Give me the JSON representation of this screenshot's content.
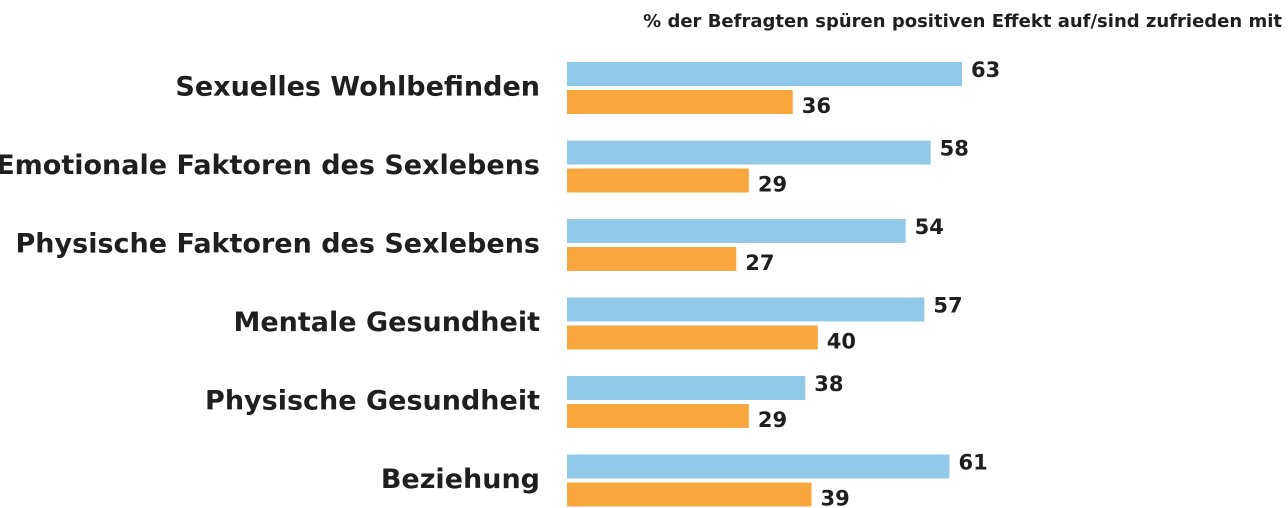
{
  "chart_data": {
    "type": "bar",
    "orientation": "horizontal",
    "subtitle": "% der Befragten spüren positiven Effekt auf/sind zufrieden mit",
    "categories": [
      "Sexuelles Wohlbefinden",
      "Emotionale Faktoren des Sexlebens",
      "Physische Faktoren des Sexlebens",
      "Mentale Gesundheit",
      "Physische Gesundheit",
      "Beziehung"
    ],
    "series": [
      {
        "color": "#93c9e8",
        "values": [
          63,
          58,
          54,
          57,
          38,
          61
        ]
      },
      {
        "color": "#f7a73e",
        "values": [
          36,
          29,
          27,
          40,
          29,
          39
        ]
      }
    ],
    "xlim": [
      0,
      100
    ]
  }
}
